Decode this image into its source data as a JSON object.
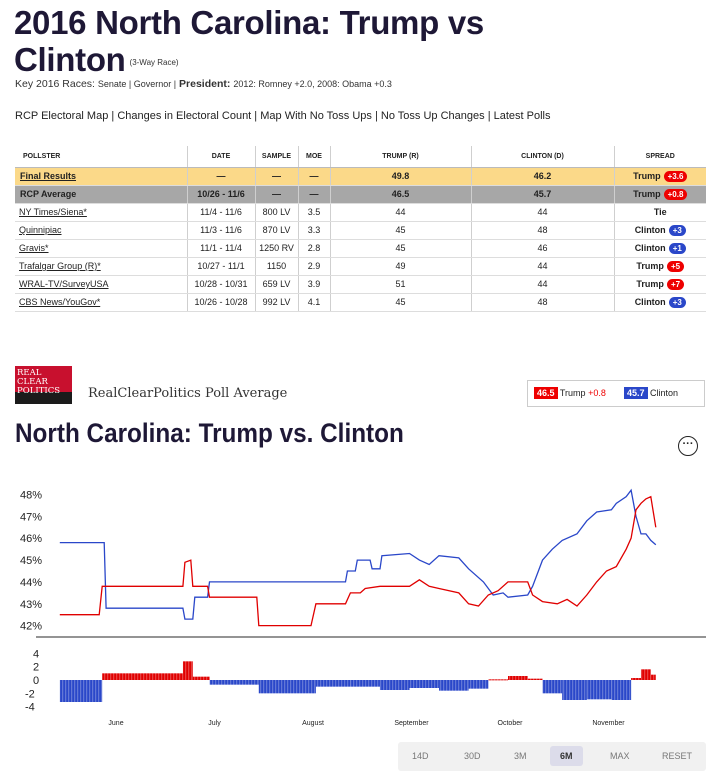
{
  "page": {
    "title": "2016 North Carolina: Trump vs Clinton",
    "race_note": "(3-Way Race)",
    "key_races_label": "Key 2016 Races:",
    "key_races": "Senate | Governor |",
    "president_label": "President:",
    "president_history": "2012: Romney +2.0, 2008: Obama +0.3",
    "links": [
      "RCP Electoral Map",
      "Changes in Electoral Count",
      "Map With No Toss Ups",
      "No Toss Up Changes",
      "Latest Polls"
    ]
  },
  "table": {
    "headers": [
      "POLLSTER",
      "DATE",
      "SAMPLE",
      "MOE",
      "TRUMP (R)",
      "CLINTON (D)",
      "SPREAD"
    ],
    "rows": [
      {
        "pollster": "Final Results",
        "date": "—",
        "sample": "—",
        "moe": "—",
        "trump": "49.8",
        "clinton": "46.2",
        "spread_name": "Trump",
        "spread_val": "+3.6",
        "party": "r",
        "type": "final"
      },
      {
        "pollster": "RCP Average",
        "date": "10/26 - 11/6",
        "sample": "—",
        "moe": "—",
        "trump": "46.5",
        "clinton": "45.7",
        "spread_name": "Trump",
        "spread_val": "+0.8",
        "party": "r",
        "type": "avg"
      },
      {
        "pollster": "NY Times/Siena*",
        "date": "11/4 - 11/6",
        "sample": "800 LV",
        "moe": "3.5",
        "trump": "44",
        "clinton": "44",
        "spread_name": "Tie",
        "spread_val": "",
        "party": "",
        "type": "poll"
      },
      {
        "pollster": "Quinnipiac",
        "date": "11/3 - 11/6",
        "sample": "870 LV",
        "moe": "3.3",
        "trump": "45",
        "clinton": "48",
        "spread_name": "Clinton",
        "spread_val": "+3",
        "party": "d",
        "type": "poll"
      },
      {
        "pollster": "Gravis*",
        "date": "11/1 - 11/4",
        "sample": "1250 RV",
        "moe": "2.8",
        "trump": "45",
        "clinton": "46",
        "spread_name": "Clinton",
        "spread_val": "+1",
        "party": "d",
        "type": "poll"
      },
      {
        "pollster": "Trafalgar Group (R)*",
        "date": "10/27 - 11/1",
        "sample": "1150",
        "moe": "2.9",
        "trump": "49",
        "clinton": "44",
        "spread_name": "Trump",
        "spread_val": "+5",
        "party": "r",
        "type": "poll"
      },
      {
        "pollster": "WRAL-TV/SurveyUSA",
        "date": "10/28 - 10/31",
        "sample": "659 LV",
        "moe": "3.9",
        "trump": "51",
        "clinton": "44",
        "spread_name": "Trump",
        "spread_val": "+7",
        "party": "r",
        "type": "poll"
      },
      {
        "pollster": "CBS News/YouGov*",
        "date": "10/26 - 10/28",
        "sample": "992 LV",
        "moe": "4.1",
        "trump": "45",
        "clinton": "48",
        "spread_name": "Clinton",
        "spread_val": "+3",
        "party": "d",
        "type": "poll"
      }
    ]
  },
  "logo": {
    "line1": "REAL",
    "line2": "CLEAR",
    "line3": "POLITICS"
  },
  "chart_header": {
    "source": "RealClearPolitics Poll Average",
    "title": "North Carolina: Trump vs. Clinton",
    "menu_icon": "ellipsis-icon"
  },
  "legend": {
    "trump_value": "46.5",
    "trump_label": "Trump",
    "trump_spread": "+0.8",
    "clinton_value": "45.7",
    "clinton_label": "Clinton"
  },
  "colors": {
    "trump": "#e00000",
    "clinton": "#2a47c9"
  },
  "range_buttons": [
    "14D",
    "30D",
    "3M",
    "6M",
    "MAX",
    "RESET"
  ],
  "range_selected": "6M",
  "chart_data": {
    "type": "line",
    "x_axis": "month index (0 = June 1; 1 = July 1; ... 5 = November 1)",
    "month_labels": [
      "June",
      "July",
      "August",
      "September",
      "October",
      "November"
    ],
    "y_ticks": [
      "48%",
      "47%",
      "46%",
      "45%",
      "44%",
      "43%",
      "42%"
    ],
    "ylim": [
      41.8,
      48.3
    ],
    "series": [
      {
        "name": "Clinton",
        "color": "#2a47c9",
        "points": [
          [
            -0.55,
            45.8
          ],
          [
            -0.1,
            45.8
          ],
          [
            -0.08,
            42.8
          ],
          [
            0.7,
            42.8
          ],
          [
            0.72,
            42.3
          ],
          [
            0.8,
            42.3
          ],
          [
            0.82,
            43.3
          ],
          [
            0.95,
            43.3
          ],
          [
            0.97,
            44.0
          ],
          [
            1.4,
            44.0
          ],
          [
            1.42,
            44.0
          ],
          [
            2.1,
            44.0
          ],
          [
            2.15,
            44.0
          ],
          [
            2.35,
            44.0
          ],
          [
            2.37,
            44.5
          ],
          [
            2.45,
            44.5
          ],
          [
            2.47,
            45.0
          ],
          [
            2.6,
            45.0
          ],
          [
            2.62,
            44.6
          ],
          [
            2.7,
            44.6
          ],
          [
            2.72,
            45.2
          ],
          [
            3.0,
            45.3
          ],
          [
            3.1,
            45.0
          ],
          [
            3.2,
            44.8
          ],
          [
            3.3,
            45.2
          ],
          [
            3.5,
            45.1
          ],
          [
            3.6,
            44.6
          ],
          [
            3.75,
            44.0
          ],
          [
            3.85,
            43.4
          ],
          [
            3.95,
            43.5
          ],
          [
            4.0,
            43.3
          ],
          [
            4.2,
            43.4
          ],
          [
            4.25,
            43.8
          ],
          [
            4.35,
            45.0
          ],
          [
            4.45,
            45.5
          ],
          [
            4.55,
            45.9
          ],
          [
            4.7,
            46.2
          ],
          [
            4.8,
            46.8
          ],
          [
            4.9,
            47.2
          ],
          [
            5.05,
            47.3
          ],
          [
            5.1,
            47.6
          ],
          [
            5.2,
            47.9
          ],
          [
            5.25,
            48.2
          ],
          [
            5.3,
            47.0
          ],
          [
            5.35,
            46.2
          ],
          [
            5.4,
            46.2
          ],
          [
            5.45,
            45.9
          ],
          [
            5.5,
            45.7
          ]
        ]
      },
      {
        "name": "Trump",
        "color": "#e00000",
        "points": [
          [
            -0.55,
            42.5
          ],
          [
            -0.15,
            42.5
          ],
          [
            -0.12,
            43.8
          ],
          [
            0.7,
            43.8
          ],
          [
            0.72,
            44.9
          ],
          [
            0.78,
            45.0
          ],
          [
            0.8,
            43.8
          ],
          [
            0.95,
            43.8
          ],
          [
            0.97,
            43.3
          ],
          [
            1.45,
            43.3
          ],
          [
            1.47,
            42.0
          ],
          [
            2.0,
            42.0
          ],
          [
            2.05,
            43.0
          ],
          [
            2.35,
            43.0
          ],
          [
            2.4,
            43.5
          ],
          [
            2.5,
            43.5
          ],
          [
            2.55,
            43.7
          ],
          [
            2.7,
            43.8
          ],
          [
            3.0,
            43.8
          ],
          [
            3.1,
            44.1
          ],
          [
            3.2,
            43.8
          ],
          [
            3.3,
            43.7
          ],
          [
            3.5,
            43.5
          ],
          [
            3.6,
            43.0
          ],
          [
            3.7,
            42.9
          ],
          [
            3.8,
            43.4
          ],
          [
            3.9,
            43.6
          ],
          [
            4.0,
            44.0
          ],
          [
            4.2,
            44.0
          ],
          [
            4.25,
            43.4
          ],
          [
            4.35,
            43.1
          ],
          [
            4.5,
            43.0
          ],
          [
            4.6,
            43.2
          ],
          [
            4.7,
            42.9
          ],
          [
            4.8,
            43.4
          ],
          [
            4.9,
            44.0
          ],
          [
            5.0,
            44.5
          ],
          [
            5.1,
            44.7
          ],
          [
            5.2,
            45.5
          ],
          [
            5.25,
            46.0
          ],
          [
            5.3,
            47.3
          ],
          [
            5.35,
            47.6
          ],
          [
            5.4,
            47.8
          ],
          [
            5.45,
            47.9
          ],
          [
            5.5,
            46.5
          ]
        ]
      }
    ],
    "spread_chart": {
      "y_ticks": [
        "4",
        "2",
        "0",
        "-2",
        "-4"
      ],
      "ylim": [
        -4.5,
        4.5
      ],
      "segments": [
        [
          -0.55,
          -0.12,
          -3.3
        ],
        [
          -0.12,
          0.7,
          1.0
        ],
        [
          0.7,
          0.8,
          2.8
        ],
        [
          0.8,
          0.97,
          0.5
        ],
        [
          0.97,
          1.47,
          -0.7
        ],
        [
          1.47,
          2.05,
          -2.0
        ],
        [
          2.05,
          2.4,
          -1.0
        ],
        [
          2.4,
          2.7,
          -1.0
        ],
        [
          2.7,
          3.0,
          -1.5
        ],
        [
          3.0,
          3.3,
          -1.2
        ],
        [
          3.3,
          3.6,
          -1.6
        ],
        [
          3.6,
          3.8,
          -1.3
        ],
        [
          3.8,
          4.0,
          0.1
        ],
        [
          4.0,
          4.2,
          0.6
        ],
        [
          4.2,
          4.35,
          0.2
        ],
        [
          4.35,
          4.55,
          -2.0
        ],
        [
          4.55,
          4.8,
          -3.0
        ],
        [
          4.8,
          5.05,
          -2.9
        ],
        [
          5.05,
          5.25,
          -3.0
        ],
        [
          5.25,
          5.35,
          0.3
        ],
        [
          5.35,
          5.45,
          1.6
        ],
        [
          5.45,
          5.5,
          0.8
        ]
      ]
    }
  }
}
